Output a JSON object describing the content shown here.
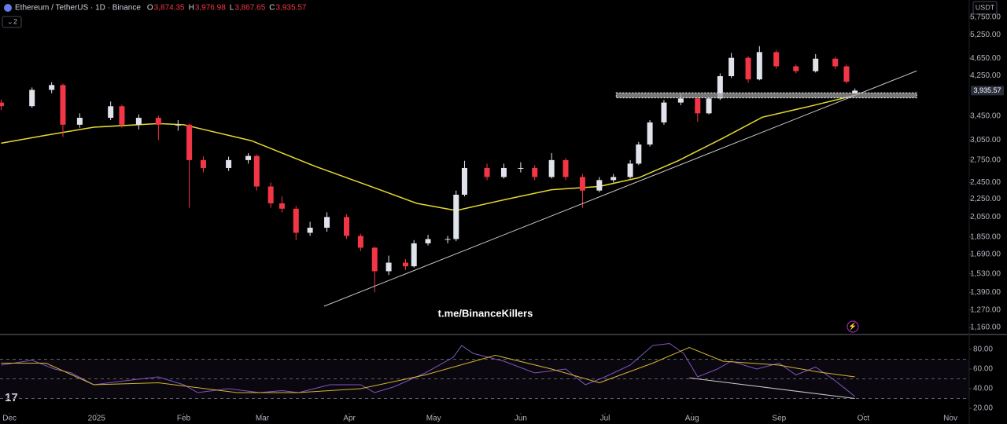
{
  "header": {
    "symbol": "Ethereum / TetherUS · 1D · Binance",
    "ohlc": [
      {
        "key": "O",
        "text": "3,874.35"
      },
      {
        "key": "H",
        "text": "3,976.98"
      },
      {
        "key": "L",
        "text": "3,867.65"
      },
      {
        "key": "C",
        "text": "3,935.57"
      }
    ],
    "indicator_count": "2",
    "currency": "USDT"
  },
  "watermark": "t.me/BinanceKillers",
  "chart_data": [
    {
      "type": "candlestick",
      "log_scale": true,
      "up_color": "#e0e3eb",
      "down_color": "#f23645",
      "xlim": [
        -3.4,
        341.7
      ],
      "ylim": [
        1123,
        6280
      ],
      "xticks": [
        {
          "value": 0,
          "label": "Dec"
        },
        {
          "value": 31,
          "label": "2025"
        },
        {
          "value": 62,
          "label": "Feb"
        },
        {
          "value": 90,
          "label": "Mar"
        },
        {
          "value": 121,
          "label": "Apr"
        },
        {
          "value": 151,
          "label": "May"
        },
        {
          "value": 182,
          "label": "Jun"
        },
        {
          "value": 212,
          "label": "Jul"
        },
        {
          "value": 243,
          "label": "Aug"
        },
        {
          "value": 274,
          "label": "Sep"
        },
        {
          "value": 304,
          "label": "Oct"
        },
        {
          "value": 335,
          "label": "Nov"
        }
      ],
      "yticks": [
        {
          "value": 5750,
          "label": "5,750.00"
        },
        {
          "value": 5250,
          "label": "5,250.00"
        },
        {
          "value": 4650,
          "label": "4,650.00"
        },
        {
          "value": 4250,
          "label": "4,250.00"
        },
        {
          "value": 3450,
          "label": "3,450.00"
        },
        {
          "value": 3050,
          "label": "3,050.00"
        },
        {
          "value": 2750,
          "label": "2,750.00"
        },
        {
          "value": 2450,
          "label": "2,450.00"
        },
        {
          "value": 2250,
          "label": "2,250.00"
        },
        {
          "value": 2050,
          "label": "2,050.00"
        },
        {
          "value": 1850,
          "label": "1,850.00"
        },
        {
          "value": 1690,
          "label": "1,690.00"
        },
        {
          "value": 1530,
          "label": "1,530.00"
        },
        {
          "value": 1390,
          "label": "1,390.00"
        },
        {
          "value": 1270,
          "label": "1,270.00"
        },
        {
          "value": 1160,
          "label": "1,160.00"
        }
      ],
      "x": [
        -3,
        8,
        15,
        19,
        25,
        36,
        40,
        46,
        53,
        60,
        64,
        69,
        78,
        85,
        88,
        93,
        97,
        102,
        107,
        113,
        120,
        125,
        130,
        135,
        141,
        144,
        149,
        156,
        159,
        162,
        170,
        176,
        182,
        187,
        193,
        198,
        204,
        210,
        215,
        221,
        224,
        228,
        233,
        239,
        245,
        249,
        253,
        257,
        263,
        267,
        273,
        280,
        287,
        294,
        298,
        301
      ],
      "open": [
        3700,
        3632,
        3950,
        4050,
        3300,
        3420,
        3630,
        3300,
        3420,
        3300,
        3300,
        2750,
        2640,
        2750,
        2810,
        2400,
        2200,
        2140,
        1890,
        1940,
        2050,
        1860,
        1750,
        1550,
        1620,
        1590,
        1790,
        1830,
        1830,
        2300,
        2640,
        2520,
        2640,
        2640,
        2520,
        2750,
        2520,
        2350,
        2480,
        2520,
        2700,
        2980,
        3340,
        3700,
        3780,
        3500,
        3780,
        4240,
        4660,
        4170,
        4800,
        4460,
        4350,
        4640,
        4460,
        3874.35
      ],
      "high": [
        3760,
        4000,
        4110,
        4080,
        3500,
        3720,
        3660,
        3480,
        3460,
        3380,
        3320,
        2800,
        2800,
        2850,
        2830,
        2450,
        2280,
        2170,
        2000,
        2100,
        2080,
        1880,
        1760,
        1680,
        1650,
        1820,
        1870,
        1860,
        2350,
        2740,
        2700,
        2700,
        2720,
        2680,
        2850,
        2780,
        2560,
        2520,
        2560,
        2750,
        3020,
        3380,
        3750,
        3880,
        3800,
        3800,
        4300,
        4780,
        4700,
        4950,
        4850,
        4500,
        4750,
        4680,
        4500,
        3976.98
      ],
      "low": [
        3560,
        3600,
        3880,
        3100,
        3250,
        3380,
        3250,
        3220,
        3050,
        3200,
        2150,
        2580,
        2600,
        2700,
        2350,
        2150,
        2100,
        1820,
        1860,
        1900,
        1830,
        1720,
        1390,
        1520,
        1560,
        1580,
        1770,
        1790,
        1810,
        2280,
        2480,
        2500,
        2580,
        2480,
        2500,
        2480,
        2150,
        2330,
        2450,
        2500,
        2680,
        2950,
        3300,
        3650,
        3350,
        3480,
        3750,
        4200,
        4100,
        4150,
        4400,
        4300,
        4320,
        4400,
        4080,
        3867.65
      ],
      "close": [
        3632,
        3950,
        4050,
        3300,
        3420,
        3630,
        3300,
        3420,
        3300,
        3300,
        2750,
        2640,
        2750,
        2810,
        2400,
        2200,
        2140,
        1890,
        1940,
        2050,
        1860,
        1750,
        1550,
        1620,
        1590,
        1790,
        1830,
        1830,
        2300,
        2640,
        2520,
        2640,
        2640,
        2520,
        2750,
        2520,
        2350,
        2480,
        2520,
        2700,
        2980,
        3340,
        3700,
        3780,
        3500,
        3780,
        4240,
        4660,
        4170,
        4800,
        4460,
        4350,
        4640,
        4460,
        4120,
        3935.57
      ],
      "last_price": {
        "value": 3935.57,
        "label": "3,935.57"
      },
      "ma": {
        "color": "#e6d930",
        "x": [
          -3,
          13,
          30,
          53,
          62,
          86,
          109,
          131,
          145,
          159,
          176,
          193,
          210,
          224,
          238,
          254,
          268,
          285,
          301
        ],
        "values": [
          3000,
          3127,
          3258,
          3320,
          3300,
          3040,
          2660,
          2370,
          2200,
          2120,
          2240,
          2360,
          2400,
          2510,
          2740,
          3080,
          3430,
          3630,
          3840
        ]
      },
      "trendline": {
        "color": "#c8c8c8",
        "x": [
          112,
          323
        ],
        "values": [
          1294,
          4357
        ]
      },
      "zone": {
        "color": "#9e9e9e",
        "x": [
          216,
          323
        ],
        "values": [
          3790,
          3890
        ]
      }
    },
    {
      "type": "line",
      "ylim": [
        16,
        93.6
      ],
      "yticks": [
        {
          "value": 80,
          "label": "80.00"
        },
        {
          "value": 60,
          "label": "60.00"
        },
        {
          "value": 40,
          "label": "40.00"
        },
        {
          "value": 20,
          "label": "20.00"
        }
      ],
      "bands": [
        70,
        50,
        30
      ],
      "series": [
        {
          "color": "#7e57c2",
          "x": [
            -3,
            8,
            16,
            22,
            30,
            41,
            53,
            62,
            67,
            78,
            89,
            97,
            103,
            114,
            125,
            130,
            137,
            148,
            158,
            161,
            165,
            176,
            187,
            198,
            205,
            212,
            221,
            229,
            235,
            240,
            245,
            252,
            257,
            266,
            274,
            280,
            287,
            294,
            298,
            301
          ],
          "values": [
            64,
            69,
            60,
            56,
            44,
            48,
            52,
            44,
            36,
            40,
            36,
            38,
            36,
            44,
            44,
            36,
            42,
            56,
            72,
            84,
            76,
            68,
            56,
            60,
            44,
            52,
            64,
            84,
            86,
            76,
            52,
            60,
            68,
            60,
            66,
            54,
            62,
            48,
            39,
            32
          ]
        },
        {
          "color": "#d4b531",
          "x": [
            -3,
            13,
            30,
            53,
            81,
            103,
            125,
            148,
            173,
            193,
            210,
            229,
            242,
            254,
            274,
            288,
            301
          ],
          "values": [
            66,
            66,
            44,
            46,
            36,
            36,
            40,
            54,
            74,
            60,
            46,
            66,
            82,
            68,
            64,
            57,
            52
          ]
        }
      ],
      "trendline": {
        "color": "#c8c8c8",
        "x": [
          242,
          301
        ],
        "values": [
          51,
          30
        ]
      }
    }
  ]
}
